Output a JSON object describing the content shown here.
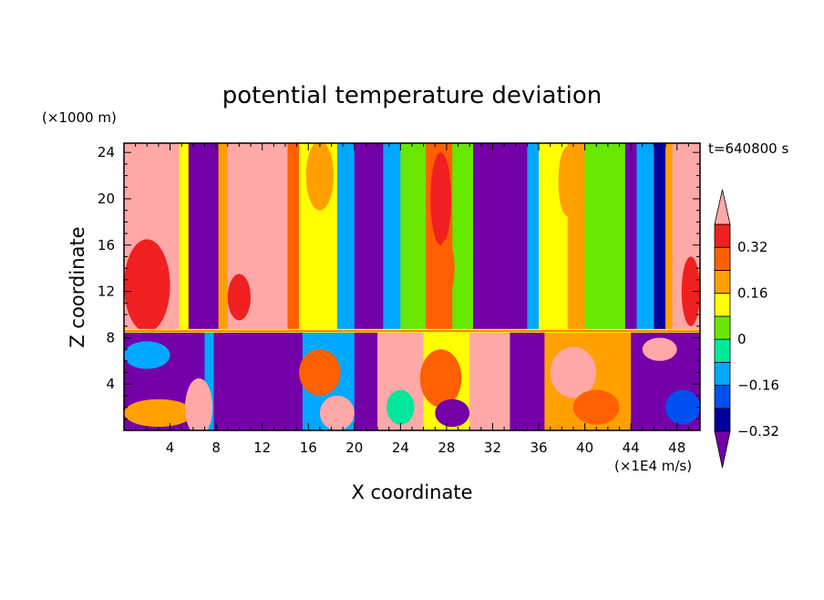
{
  "chart_data": {
    "type": "heatmap",
    "title": "potential temperature deviation",
    "xlabel": "X coordinate",
    "ylabel": "Z coordinate",
    "x_unit": "(×1E4 m/s)",
    "y_unit": "(×1000 m)",
    "time_label": "t=640800 s",
    "xlim": [
      0,
      50
    ],
    "ylim": [
      0,
      24.8
    ],
    "x_ticks": [
      "4",
      "8",
      "12",
      "16",
      "20",
      "24",
      "28",
      "32",
      "36",
      "40",
      "44",
      "48"
    ],
    "y_ticks": [
      "4",
      "8",
      "12",
      "16",
      "20",
      "24"
    ],
    "colorbar": {
      "levels": [
        -0.4,
        -0.32,
        -0.24,
        -0.16,
        -0.08,
        0,
        0.08,
        0.16,
        0.24,
        0.32,
        0.4
      ],
      "labels": [
        "0.32",
        "0.16",
        "0",
        "−0.16",
        "−0.32"
      ],
      "colors": [
        "#7400a8",
        "#00009c",
        "#0050f0",
        "#00a8ff",
        "#00e89c",
        "#68e800",
        "#ffff00",
        "#ffa000",
        "#ff6000",
        "#f02020",
        "#ffa8a8"
      ],
      "extend": "both"
    },
    "upper_layer_columns": [
      {
        "x0": 0,
        "x1": 4.8,
        "level": 10
      },
      {
        "x0": 4.8,
        "x1": 5.6,
        "level": 6
      },
      {
        "x0": 5.6,
        "x1": 8.2,
        "level": 0
      },
      {
        "x0": 8.2,
        "x1": 9.0,
        "level": 7
      },
      {
        "x0": 9.0,
        "x1": 14.2,
        "level": 10
      },
      {
        "x0": 14.2,
        "x1": 15.2,
        "level": 8
      },
      {
        "x0": 15.2,
        "x1": 18.5,
        "level": 6
      },
      {
        "x0": 18.5,
        "x1": 20.0,
        "level": 3
      },
      {
        "x0": 20.0,
        "x1": 22.5,
        "level": 0
      },
      {
        "x0": 22.5,
        "x1": 24.0,
        "level": 3
      },
      {
        "x0": 24.0,
        "x1": 26.2,
        "level": 5
      },
      {
        "x0": 26.2,
        "x1": 28.5,
        "level": 8
      },
      {
        "x0": 28.5,
        "x1": 30.3,
        "level": 5
      },
      {
        "x0": 30.3,
        "x1": 35.0,
        "level": 0
      },
      {
        "x0": 35.0,
        "x1": 36.0,
        "level": 3
      },
      {
        "x0": 36.0,
        "x1": 38.5,
        "level": 6
      },
      {
        "x0": 38.5,
        "x1": 40.0,
        "level": 7
      },
      {
        "x0": 40.0,
        "x1": 43.5,
        "level": 5
      },
      {
        "x0": 43.5,
        "x1": 44.5,
        "level": 0
      },
      {
        "x0": 44.5,
        "x1": 46.0,
        "level": 3
      },
      {
        "x0": 46.0,
        "x1": 47.0,
        "level": 1
      },
      {
        "x0": 47.0,
        "x1": 47.6,
        "level": 7
      },
      {
        "x0": 47.6,
        "x1": 50.0,
        "level": 10
      }
    ],
    "upper_layer_blobs": [
      {
        "cx": 2.0,
        "cy": 12.5,
        "rx": 2.0,
        "ry": 4.0,
        "level": 9
      },
      {
        "cx": 10.0,
        "cy": 11.5,
        "rx": 1.0,
        "ry": 2.0,
        "level": 9
      },
      {
        "cx": 27.5,
        "cy": 20.0,
        "rx": 0.9,
        "ry": 4.0,
        "level": 9
      },
      {
        "cx": 28.0,
        "cy": 14.0,
        "rx": 0.7,
        "ry": 2.5,
        "level": 8
      },
      {
        "cx": 38.5,
        "cy": 21.5,
        "rx": 0.8,
        "ry": 3.0,
        "level": 7
      },
      {
        "cx": 49.2,
        "cy": 12.0,
        "rx": 0.8,
        "ry": 3.0,
        "level": 9
      },
      {
        "cx": 17.0,
        "cy": 22.0,
        "rx": 1.2,
        "ry": 3.0,
        "level": 7
      },
      {
        "cx": 41.5,
        "cy": 15.0,
        "rx": 1.5,
        "ry": 5.0,
        "level": 5
      }
    ],
    "lower_layer_columns": [
      {
        "x0": 0,
        "x1": 7.0,
        "level": 0
      },
      {
        "x0": 7.0,
        "x1": 7.8,
        "level": 3
      },
      {
        "x0": 7.8,
        "x1": 15.5,
        "level": 0
      },
      {
        "x0": 15.5,
        "x1": 20.0,
        "level": 3
      },
      {
        "x0": 20.0,
        "x1": 22.0,
        "level": 0
      },
      {
        "x0": 22.0,
        "x1": 26.0,
        "level": 10
      },
      {
        "x0": 26.0,
        "x1": 30.0,
        "level": 6
      },
      {
        "x0": 30.0,
        "x1": 33.5,
        "level": 10
      },
      {
        "x0": 33.5,
        "x1": 36.5,
        "level": 0
      },
      {
        "x0": 36.5,
        "x1": 44.0,
        "level": 7
      },
      {
        "x0": 44.0,
        "x1": 50.0,
        "level": 0
      }
    ],
    "lower_layer_blobs": [
      {
        "cx": 2.0,
        "cy": 6.5,
        "rx": 2.0,
        "ry": 1.2,
        "level": 3
      },
      {
        "cx": 3.0,
        "cy": 1.5,
        "rx": 3.0,
        "ry": 1.2,
        "level": 7
      },
      {
        "cx": 6.5,
        "cy": 2.0,
        "rx": 1.2,
        "ry": 2.5,
        "level": 10
      },
      {
        "cx": 17.0,
        "cy": 5.0,
        "rx": 1.8,
        "ry": 2.0,
        "level": 8
      },
      {
        "cx": 18.5,
        "cy": 1.5,
        "rx": 1.5,
        "ry": 1.5,
        "level": 10
      },
      {
        "cx": 27.5,
        "cy": 4.5,
        "rx": 1.8,
        "ry": 2.5,
        "level": 8
      },
      {
        "cx": 28.5,
        "cy": 1.5,
        "rx": 1.5,
        "ry": 1.2,
        "level": 0
      },
      {
        "cx": 24.0,
        "cy": 2.0,
        "rx": 1.2,
        "ry": 1.5,
        "level": 4
      },
      {
        "cx": 39.0,
        "cy": 5.0,
        "rx": 2.0,
        "ry": 2.2,
        "level": 10
      },
      {
        "cx": 41.0,
        "cy": 2.0,
        "rx": 2.0,
        "ry": 1.5,
        "level": 8
      },
      {
        "cx": 46.5,
        "cy": 7.0,
        "rx": 1.5,
        "ry": 1.0,
        "level": 10
      },
      {
        "cx": 48.5,
        "cy": 2.0,
        "rx": 1.5,
        "ry": 1.5,
        "level": 2
      }
    ],
    "interface_z": 8.6
  }
}
